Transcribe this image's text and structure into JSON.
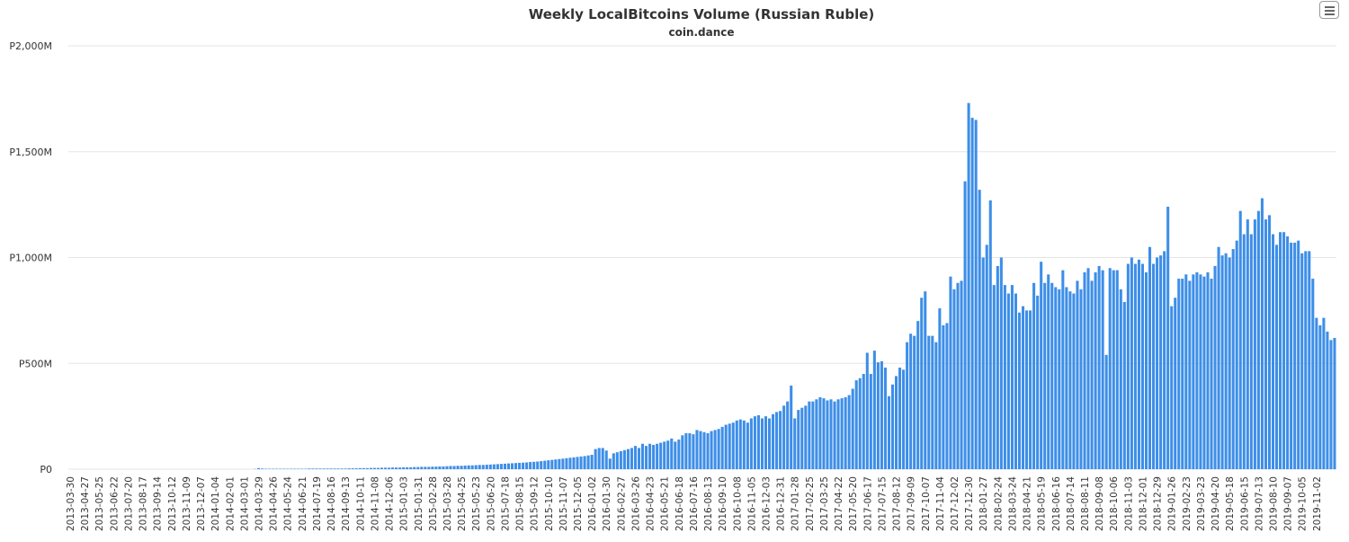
{
  "title": "Weekly LocalBitcoins Volume (Russian Ruble)",
  "subtitle": "coin.dance",
  "menu_icon": "hamburger-menu-icon",
  "colors": {
    "bar": "#3d8ee8",
    "grid": "#e6e6e6",
    "text": "#333333"
  },
  "chart_data": {
    "type": "bar",
    "title": "Weekly LocalBitcoins Volume (Russian Ruble)",
    "subtitle": "coin.dance",
    "xlabel": "",
    "ylabel": "",
    "ylim": [
      0,
      2000
    ],
    "y_unit": "million RUB",
    "yticks": [
      0,
      500,
      1000,
      1500,
      2000
    ],
    "ytick_labels": [
      "P0",
      "P500M",
      "P1,000M",
      "P1,500M",
      "P2,000M"
    ],
    "grid": true,
    "legend": "none",
    "start_week": "2013-03-30",
    "xtick_labels": [
      "2013-03-30",
      "2013-04-27",
      "2013-05-25",
      "2013-06-22",
      "2013-07-20",
      "2013-08-17",
      "2013-09-14",
      "2013-10-12",
      "2013-11-09",
      "2013-12-07",
      "2014-01-04",
      "2014-02-01",
      "2014-03-01",
      "2014-03-29",
      "2014-04-26",
      "2014-05-24",
      "2014-06-21",
      "2014-07-19",
      "2014-08-16",
      "2014-09-13",
      "2014-10-11",
      "2014-11-08",
      "2014-12-06",
      "2015-01-03",
      "2015-01-31",
      "2015-02-28",
      "2015-03-28",
      "2015-04-25",
      "2015-05-23",
      "2015-06-20",
      "2015-07-18",
      "2015-08-15",
      "2015-09-12",
      "2015-10-10",
      "2015-11-07",
      "2015-12-05",
      "2016-01-02",
      "2016-01-30",
      "2016-02-27",
      "2016-03-26",
      "2016-04-23",
      "2016-05-21",
      "2016-06-18",
      "2016-07-16",
      "2016-08-13",
      "2016-09-10",
      "2016-10-08",
      "2016-11-05",
      "2016-12-03",
      "2016-12-31",
      "2017-01-28",
      "2017-02-25",
      "2017-03-25",
      "2017-04-22",
      "2017-05-20",
      "2017-06-17",
      "2017-07-15",
      "2017-08-12",
      "2017-09-09",
      "2017-10-07",
      "2017-11-04",
      "2017-12-02",
      "2017-12-30",
      "2018-01-27",
      "2018-02-24",
      "2018-03-24",
      "2018-04-21",
      "2018-05-19",
      "2018-06-16",
      "2018-07-14",
      "2018-08-11",
      "2018-09-08",
      "2018-10-06",
      "2018-11-03",
      "2018-12-01",
      "2018-12-29",
      "2019-01-26",
      "2019-02-23",
      "2019-03-23",
      "2019-04-20",
      "2019-05-18",
      "2019-06-15",
      "2019-07-13",
      "2019-08-10",
      "2019-09-07",
      "2019-10-05",
      "2019-11-02"
    ],
    "values": [
      0,
      0,
      0,
      0,
      0,
      0,
      0,
      0,
      0,
      0,
      0,
      0,
      0,
      0,
      0,
      0,
      0,
      0,
      0,
      0,
      0,
      0,
      0,
      0,
      0,
      0,
      0,
      0,
      0,
      0,
      0,
      0,
      0,
      0,
      0,
      0,
      0,
      0,
      0,
      0,
      0,
      0,
      0,
      0,
      0,
      0,
      0,
      0,
      0,
      0,
      0,
      1,
      5,
      3,
      2,
      2,
      2,
      2,
      2,
      2,
      2,
      2,
      2,
      2,
      2,
      2,
      3,
      3,
      3,
      3,
      3,
      3,
      3,
      3,
      3,
      3,
      3,
      4,
      4,
      4,
      5,
      5,
      5,
      6,
      6,
      6,
      7,
      7,
      7,
      8,
      8,
      8,
      9,
      9,
      9,
      10,
      10,
      11,
      11,
      11,
      12,
      12,
      13,
      13,
      14,
      15,
      15,
      16,
      16,
      17,
      18,
      18,
      19,
      20,
      20,
      21,
      22,
      23,
      24,
      25,
      26,
      27,
      28,
      29,
      30,
      31,
      32,
      34,
      35,
      36,
      38,
      40,
      42,
      44,
      46,
      48,
      50,
      52,
      54,
      56,
      58,
      60,
      62,
      65,
      68,
      95,
      100,
      100,
      88,
      50,
      75,
      80,
      85,
      90,
      95,
      100,
      110,
      100,
      120,
      110,
      120,
      115,
      120,
      125,
      130,
      135,
      145,
      130,
      140,
      160,
      170,
      170,
      165,
      185,
      180,
      175,
      170,
      180,
      185,
      190,
      200,
      210,
      215,
      220,
      230,
      235,
      230,
      220,
      240,
      250,
      255,
      240,
      250,
      240,
      260,
      270,
      275,
      300,
      320,
      395,
      240,
      280,
      290,
      300,
      320,
      320,
      330,
      340,
      335,
      325,
      330,
      320,
      330,
      335,
      340,
      350,
      380,
      420,
      430,
      450,
      550,
      450,
      560,
      505,
      510,
      480,
      345,
      400,
      440,
      480,
      470,
      600,
      640,
      630,
      700,
      810,
      840,
      630,
      630,
      600,
      760,
      680,
      690,
      910,
      850,
      880,
      890,
      1360,
      1730,
      1660,
      1650,
      1320,
      1000,
      1060,
      1270,
      870,
      960,
      1000,
      870,
      830,
      870,
      830,
      740,
      770,
      750,
      750,
      880,
      820,
      980,
      880,
      920,
      880,
      860,
      850,
      940,
      860,
      840,
      830,
      890,
      850,
      930,
      950,
      890,
      930,
      960,
      940,
      540,
      950,
      940,
      940,
      850,
      790,
      970,
      1000,
      970,
      990,
      970,
      930,
      1050,
      970,
      1000,
      1010,
      1030,
      1240,
      770,
      810,
      900,
      900,
      920,
      890,
      920,
      930,
      920,
      910,
      930,
      900,
      960,
      1050,
      1010,
      1020,
      1000,
      1040,
      1080,
      1220,
      1110,
      1180,
      1110,
      1180,
      1220,
      1280,
      1180,
      1200,
      1110,
      1060,
      1120,
      1120,
      1100,
      1070,
      1070,
      1080,
      1020,
      1030,
      1030,
      900,
      715,
      680,
      715,
      650,
      610,
      620
    ]
  }
}
